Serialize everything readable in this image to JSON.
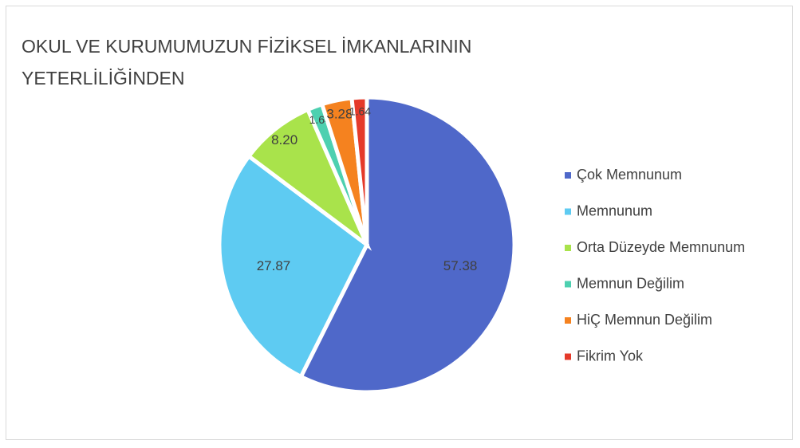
{
  "chart_data": {
    "type": "pie",
    "title": "OKUL VE KURUMUMUZUN FİZİKSEL İMKANLARININ YETERLİLİĞİNDEN",
    "categories": [
      "Çok Memnunum",
      "Memnunum",
      "Orta Düzeyde Memnunum",
      "Memnun Değilim",
      "HiÇ Memnun Değilim",
      "Fikrim Yok"
    ],
    "values": [
      57.38,
      27.87,
      8.2,
      1.64,
      3.28,
      1.64
    ],
    "value_labels": [
      "57.38",
      "27.87",
      "8.20",
      "1.64",
      "3.28",
      "1.64"
    ],
    "colors": [
      "#4f68c9",
      "#5ecbf2",
      "#a9e34b",
      "#4dd0b0",
      "#f5821f",
      "#e53a2a"
    ],
    "legend": "right"
  }
}
